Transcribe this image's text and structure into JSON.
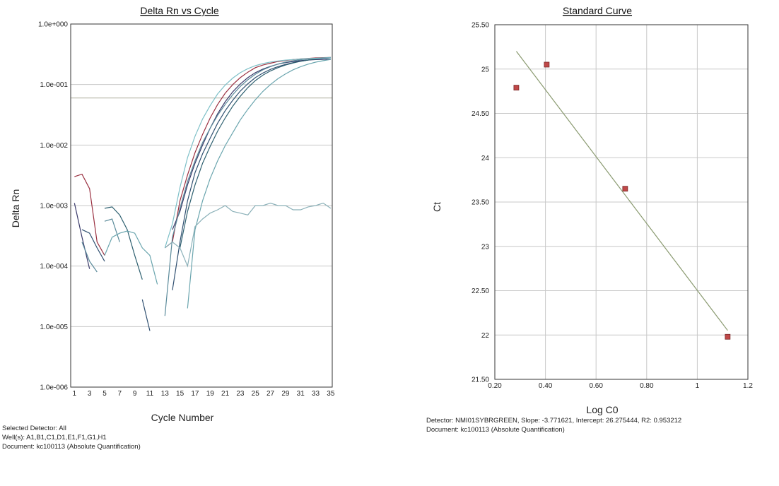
{
  "chart_data": [
    {
      "type": "line",
      "title": "Delta Rn vs Cycle",
      "xlabel": "Cycle Number",
      "ylabel": "Delta Rn",
      "y_scale": "log",
      "ylim": [
        1e-06,
        1
      ],
      "xlim": [
        0.5,
        35.2
      ],
      "x_tick_labels": [
        "1",
        "3",
        "5",
        "7",
        "9",
        "11",
        "13",
        "15",
        "17",
        "19",
        "21",
        "23",
        "25",
        "27",
        "29",
        "31",
        "33",
        "35"
      ],
      "y_tick_labels": [
        "1.0e+000",
        "1.0e-001",
        "1.0e-002",
        "1.0e-003",
        "1.0e-004",
        "1.0e-005",
        "1.0e-006"
      ],
      "threshold": 0.06,
      "grid": true,
      "series": [
        {
          "color": "#9a3040",
          "points": [
            [
              1,
              0.003
            ],
            [
              2,
              0.0033
            ],
            [
              3,
              0.0019
            ],
            [
              4,
              0.00025
            ],
            [
              5,
              0.00015
            ],
            [
              null,
              null
            ],
            [
              13,
              0.0002
            ],
            [
              14,
              0.00025
            ],
            [
              15,
              0.0012
            ],
            [
              16,
              0.0032
            ],
            [
              17,
              0.0075
            ],
            [
              18,
              0.015
            ],
            [
              19,
              0.028
            ],
            [
              20,
              0.047
            ],
            [
              21,
              0.072
            ],
            [
              22,
              0.1
            ],
            [
              23,
              0.13
            ],
            [
              24,
              0.16
            ],
            [
              25,
              0.19
            ],
            [
              26,
              0.21
            ],
            [
              27,
              0.225
            ],
            [
              28,
              0.24
            ],
            [
              29,
              0.25
            ],
            [
              30,
              0.258
            ],
            [
              31,
              0.265
            ],
            [
              32,
              0.27
            ],
            [
              33,
              0.275
            ],
            [
              34,
              0.278
            ],
            [
              35,
              0.28
            ]
          ]
        },
        {
          "color": "#3a3a6a",
          "points": [
            [
              1,
              0.0011
            ],
            [
              2,
              0.0003
            ],
            [
              3,
              9e-05
            ],
            [
              null,
              null
            ],
            [
              14,
              0.0004
            ],
            [
              15,
              0.0008
            ],
            [
              16,
              0.0022
            ],
            [
              17,
              0.005
            ],
            [
              18,
              0.01
            ],
            [
              19,
              0.019
            ],
            [
              20,
              0.033
            ],
            [
              21,
              0.052
            ],
            [
              22,
              0.076
            ],
            [
              23,
              0.102
            ],
            [
              24,
              0.13
            ],
            [
              25,
              0.157
            ],
            [
              26,
              0.18
            ],
            [
              27,
              0.2
            ],
            [
              28,
              0.217
            ],
            [
              29,
              0.23
            ],
            [
              30,
              0.24
            ],
            [
              31,
              0.248
            ],
            [
              32,
              0.254
            ],
            [
              33,
              0.258
            ],
            [
              34,
              0.261
            ],
            [
              35,
              0.263
            ]
          ]
        },
        {
          "color": "#2f4f70",
          "points": [
            [
              2,
              0.0004
            ],
            [
              3,
              0.00035
            ],
            [
              4,
              0.0002
            ],
            [
              5,
              0.00012
            ],
            [
              null,
              null
            ],
            [
              10,
              2.8e-05
            ],
            [
              11,
              8.5e-06
            ],
            [
              null,
              null
            ],
            [
              14,
              4e-05
            ],
            [
              15,
              0.00025
            ],
            [
              16,
              0.0012
            ],
            [
              17,
              0.0035
            ],
            [
              18,
              0.0072
            ],
            [
              19,
              0.013
            ],
            [
              20,
              0.023
            ],
            [
              21,
              0.037
            ],
            [
              22,
              0.055
            ],
            [
              23,
              0.078
            ],
            [
              24,
              0.103
            ],
            [
              25,
              0.13
            ],
            [
              26,
              0.155
            ],
            [
              27,
              0.178
            ],
            [
              28,
              0.198
            ],
            [
              29,
              0.215
            ],
            [
              30,
              0.23
            ],
            [
              31,
              0.243
            ],
            [
              32,
              0.254
            ],
            [
              33,
              0.263
            ],
            [
              34,
              0.27
            ],
            [
              35,
              0.276
            ]
          ]
        },
        {
          "color": "#2e6070",
          "points": [
            [
              5,
              0.0009
            ],
            [
              6,
              0.00095
            ],
            [
              7,
              0.0007
            ],
            [
              8,
              0.0004
            ],
            [
              9,
              0.00015
            ],
            [
              10,
              6e-05
            ],
            [
              null,
              null
            ],
            [
              15,
              0.0002
            ],
            [
              16,
              0.0008
            ],
            [
              17,
              0.0022
            ],
            [
              18,
              0.005
            ],
            [
              19,
              0.0095
            ],
            [
              20,
              0.017
            ],
            [
              21,
              0.028
            ],
            [
              22,
              0.044
            ],
            [
              23,
              0.064
            ],
            [
              24,
              0.089
            ],
            [
              25,
              0.116
            ],
            [
              26,
              0.143
            ],
            [
              27,
              0.168
            ],
            [
              28,
              0.19
            ],
            [
              29,
              0.21
            ],
            [
              30,
              0.227
            ],
            [
              31,
              0.242
            ],
            [
              32,
              0.254
            ],
            [
              33,
              0.264
            ],
            [
              34,
              0.272
            ],
            [
              35,
              0.278
            ]
          ]
        },
        {
          "color": "#5a8a9a",
          "points": [
            [
              2,
              0.00025
            ],
            [
              3,
              0.00012
            ],
            [
              4,
              8e-05
            ],
            [
              null,
              null
            ],
            [
              5,
              0.00055
            ],
            [
              6,
              0.0006
            ],
            [
              7,
              0.00025
            ],
            [
              null,
              null
            ],
            [
              13,
              1.5e-05
            ],
            [
              14,
              0.0003
            ],
            [
              15,
              0.0009
            ],
            [
              16,
              0.0025
            ],
            [
              17,
              0.0055
            ],
            [
              18,
              0.011
            ],
            [
              19,
              0.019
            ],
            [
              20,
              0.031
            ],
            [
              21,
              0.047
            ],
            [
              22,
              0.068
            ],
            [
              23,
              0.093
            ],
            [
              24,
              0.12
            ],
            [
              25,
              0.148
            ],
            [
              26,
              0.175
            ],
            [
              27,
              0.198
            ],
            [
              28,
              0.218
            ],
            [
              29,
              0.234
            ],
            [
              30,
              0.247
            ],
            [
              31,
              0.257
            ],
            [
              32,
              0.265
            ],
            [
              33,
              0.271
            ],
            [
              34,
              0.276
            ],
            [
              35,
              0.28
            ]
          ]
        },
        {
          "color": "#6aa5ae",
          "points": [
            [
              5,
              0.00015
            ],
            [
              6,
              0.0003
            ],
            [
              7,
              0.00035
            ],
            [
              8,
              0.00038
            ],
            [
              9,
              0.00035
            ],
            [
              10,
              0.0002
            ],
            [
              11,
              0.00015
            ],
            [
              12,
              5e-05
            ],
            [
              null,
              null
            ],
            [
              16,
              2e-05
            ],
            [
              17,
              0.0004
            ],
            [
              18,
              0.0012
            ],
            [
              19,
              0.0028
            ],
            [
              20,
              0.0055
            ],
            [
              21,
              0.0098
            ],
            [
              22,
              0.016
            ],
            [
              23,
              0.026
            ],
            [
              24,
              0.039
            ],
            [
              25,
              0.056
            ],
            [
              26,
              0.077
            ],
            [
              27,
              0.1
            ],
            [
              28,
              0.125
            ],
            [
              29,
              0.15
            ],
            [
              30,
              0.175
            ],
            [
              31,
              0.197
            ],
            [
              32,
              0.217
            ],
            [
              33,
              0.234
            ],
            [
              34,
              0.248
            ],
            [
              35,
              0.26
            ]
          ]
        },
        {
          "color": "#8ab0b8",
          "points": [
            [
              13,
              0.0002
            ],
            [
              14,
              0.00025
            ],
            [
              15,
              0.0002
            ],
            [
              16,
              0.0001
            ],
            [
              17,
              0.00045
            ],
            [
              18,
              0.0006
            ],
            [
              19,
              0.00075
            ],
            [
              20,
              0.00085
            ],
            [
              21,
              0.001
            ],
            [
              22,
              0.0008
            ],
            [
              23,
              0.00075
            ],
            [
              24,
              0.0007
            ],
            [
              25,
              0.001
            ],
            [
              26,
              0.001
            ],
            [
              27,
              0.0011
            ],
            [
              28,
              0.001
            ],
            [
              29,
              0.001
            ],
            [
              30,
              0.00085
            ],
            [
              31,
              0.00085
            ],
            [
              32,
              0.00095
            ],
            [
              33,
              0.001
            ],
            [
              34,
              0.0011
            ],
            [
              35,
              0.0009
            ]
          ]
        },
        {
          "color": "#7ec0c8",
          "points": [
            [
              13,
              0.0002
            ],
            [
              14,
              0.0005
            ],
            [
              15,
              0.002
            ],
            [
              16,
              0.0062
            ],
            [
              17,
              0.014
            ],
            [
              18,
              0.027
            ],
            [
              19,
              0.045
            ],
            [
              20,
              0.07
            ],
            [
              21,
              0.098
            ],
            [
              22,
              0.128
            ],
            [
              23,
              0.157
            ],
            [
              24,
              0.183
            ],
            [
              25,
              0.205
            ],
            [
              26,
              0.222
            ],
            [
              27,
              0.235
            ],
            [
              28,
              0.245
            ],
            [
              29,
              0.253
            ],
            [
              30,
              0.259
            ],
            [
              31,
              0.264
            ],
            [
              32,
              0.268
            ],
            [
              33,
              0.271
            ],
            [
              34,
              0.274
            ],
            [
              35,
              0.276
            ]
          ]
        }
      ]
    },
    {
      "type": "scatter",
      "title": "Standard Curve",
      "xlabel": "Log C0",
      "ylabel": "Ct",
      "xlim": [
        0.2,
        1.2
      ],
      "ylim": [
        21.5,
        25.5
      ],
      "x_tick_labels": [
        "0.20",
        "0.40",
        "0.60",
        "0.80",
        "1",
        "1.2"
      ],
      "y_tick_labels": [
        "25.50",
        "25",
        "24.50",
        "24",
        "23.50",
        "23",
        "22.50",
        "22",
        "21.50"
      ],
      "grid": true,
      "points": [
        [
          0.285,
          24.79
        ],
        [
          0.405,
          25.05
        ],
        [
          0.715,
          23.65
        ],
        [
          1.12,
          21.98
        ]
      ],
      "fit_line": {
        "x_start": 0.285,
        "x_end": 1.12,
        "slope": -3.771621,
        "intercept": 26.275444
      }
    }
  ],
  "left_info": {
    "line1": "Selected Detector: All",
    "line2": "Well(s): A1,B1,C1,D1,E1,F1,G1,H1",
    "line3": "Document: kc100113 (Absolute Quantification)"
  },
  "right_info": {
    "line1": "Detector: NMI01SYBRGREEN, Slope:  -3.771621, Intercept:  26.275444, R2:  0.953212",
    "line2": "Document: kc100113 (Absolute Quantification)"
  },
  "colors": {
    "marker": "#c04848",
    "fit_line": "#8a9a70",
    "threshold": "#b8b8a8",
    "grid": "#c8c8c8"
  }
}
